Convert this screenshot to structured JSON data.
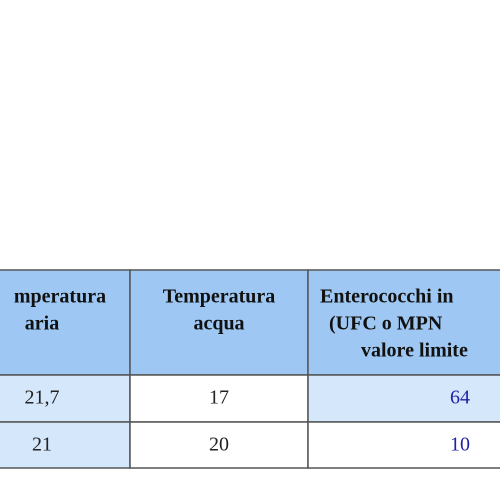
{
  "table": {
    "header": [
      [
        "mperatura",
        "aria"
      ],
      [
        "Temperatura",
        "acqua"
      ],
      [
        "Enterococchi in",
        "(UFC o MPN",
        "valore limite"
      ]
    ],
    "rows": [
      [
        "21,7",
        17,
        64
      ],
      [
        21,
        20,
        10
      ]
    ]
  }
}
